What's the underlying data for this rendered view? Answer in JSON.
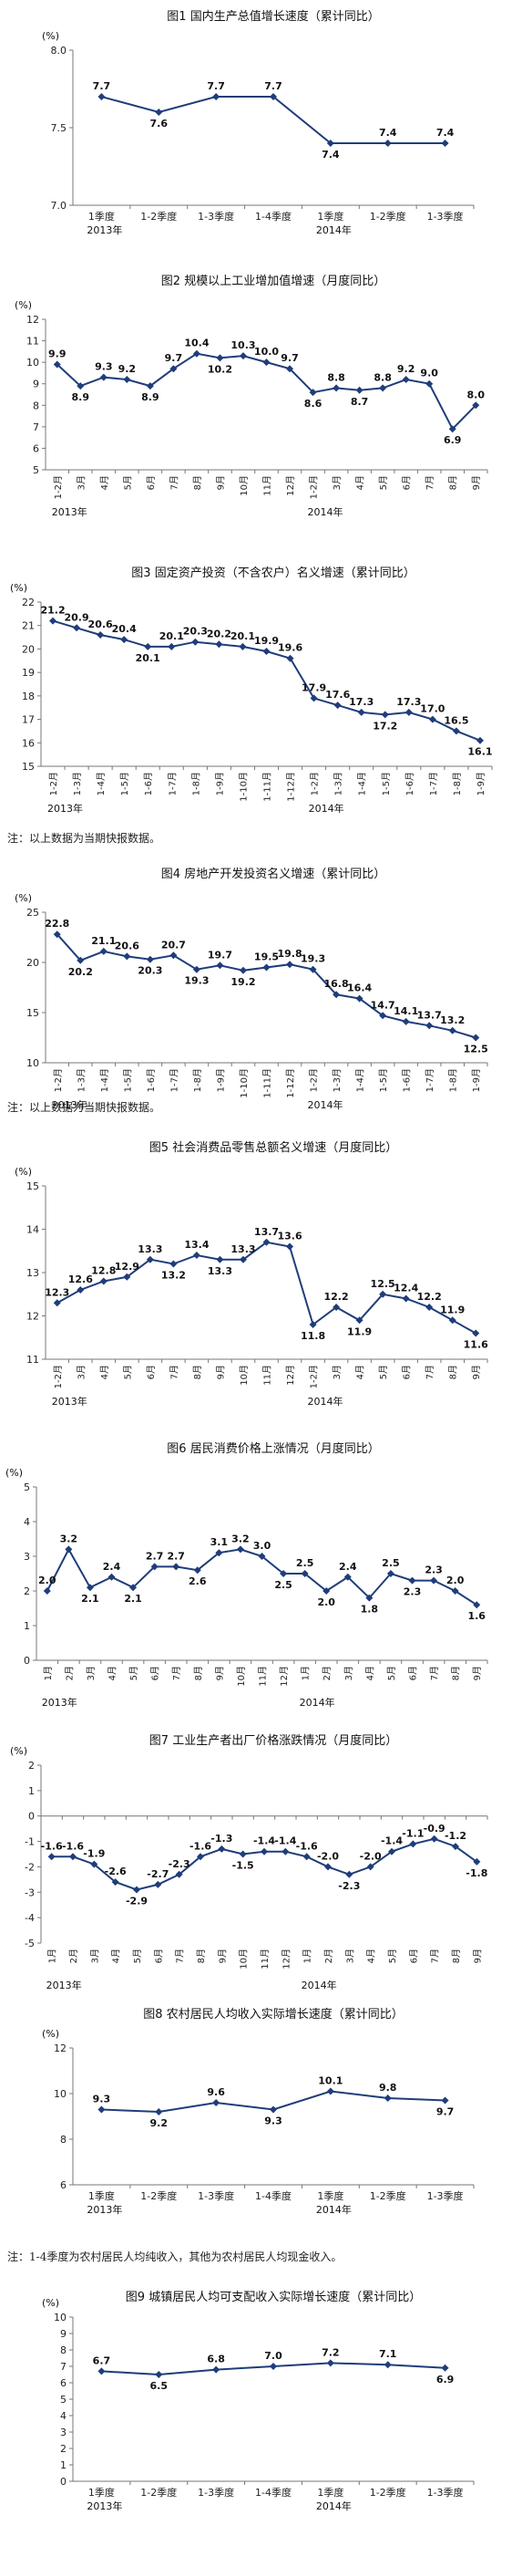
{
  "colors": {
    "line": "#1f3d7a",
    "axis": "#777777",
    "grid": "#bbbbbb"
  },
  "chart_data": [
    {
      "type": "line",
      "title": "图1  国内生产总值增长速度（累计同比）",
      "unit": "(%)",
      "categories": [
        "1季度",
        "1-2季度",
        "1-3季度",
        "1-4季度",
        "1季度",
        "1-2季度",
        "1-3季度"
      ],
      "years": [
        {
          "label": "2013年",
          "index": 0
        },
        {
          "label": "2014年",
          "index": 4
        }
      ],
      "values": [
        7.7,
        7.6,
        7.7,
        7.7,
        7.4,
        7.4,
        7.4
      ],
      "value_labels": [
        "7.7",
        "7.6",
        "7.7",
        "7.7",
        "7.4",
        "7.4",
        "7.4"
      ],
      "ylim": [
        7.0,
        8.0
      ],
      "yticks": [
        "7.0",
        "7.5",
        "8.0"
      ],
      "grid": false,
      "note": ""
    },
    {
      "type": "line",
      "title": "图2  规模以上工业增加值增速（月度同比）",
      "unit": "(%)",
      "categories": [
        "1-2月",
        "3月",
        "4月",
        "5月",
        "6月",
        "7月",
        "8月",
        "9月",
        "10月",
        "11月",
        "12月",
        "1-2月",
        "3月",
        "4月",
        "5月",
        "6月",
        "7月",
        "8月",
        "9月"
      ],
      "years": [
        {
          "label": "2013年",
          "index": 0
        },
        {
          "label": "2014年",
          "index": 11
        }
      ],
      "values": [
        9.9,
        8.9,
        9.3,
        9.2,
        8.9,
        9.7,
        10.4,
        10.2,
        10.3,
        10.0,
        9.7,
        8.6,
        8.8,
        8.7,
        8.8,
        9.2,
        9.0,
        6.9,
        8.0
      ],
      "value_labels": [
        "9.9",
        "8.9",
        "9.3",
        "9.2",
        "8.9",
        "9.7",
        "10.4",
        "10.2",
        "10.3",
        "10.0",
        "9.7",
        "8.6",
        "8.8",
        "8.7",
        "8.8",
        "9.2",
        "9.0",
        "6.9",
        "8.0"
      ],
      "ylim": [
        5,
        12
      ],
      "yticks": [
        "5",
        "6",
        "7",
        "8",
        "9",
        "10",
        "11",
        "12"
      ],
      "grid": false,
      "note": ""
    },
    {
      "type": "line",
      "title": "图3  固定资产投资（不含农户）名义增速（累计同比）",
      "unit": "(%)",
      "categories": [
        "1-2月",
        "1-3月",
        "1-4月",
        "1-5月",
        "1-6月",
        "1-7月",
        "1-8月",
        "1-9月",
        "1-10月",
        "1-11月",
        "1-12月",
        "1-2月",
        "1-3月",
        "1-4月",
        "1-5月",
        "1-6月",
        "1-7月",
        "1-8月",
        "1-9月"
      ],
      "years": [
        {
          "label": "2013年",
          "index": 0
        },
        {
          "label": "2014年",
          "index": 11
        }
      ],
      "values": [
        21.2,
        20.9,
        20.6,
        20.4,
        20.1,
        20.1,
        20.3,
        20.2,
        20.1,
        19.9,
        19.6,
        17.9,
        17.6,
        17.3,
        17.2,
        17.3,
        17.0,
        16.5,
        16.1
      ],
      "value_labels": [
        "21.2",
        "20.9",
        "20.6",
        "20.4",
        "20.1",
        "20.1",
        "20.3",
        "20.2",
        "20.1",
        "19.9",
        "19.6",
        "17.9",
        "17.6",
        "17.3",
        "17.2",
        "17.3",
        "17.0",
        "16.5",
        "16.1"
      ],
      "ylim": [
        15,
        22
      ],
      "yticks": [
        "15",
        "16",
        "17",
        "18",
        "19",
        "20",
        "21",
        "22"
      ],
      "grid": false,
      "note": "注：以上数据为当期快报数据。"
    },
    {
      "type": "line",
      "title": "图4  房地产开发投资名义增速（累计同比）",
      "unit": "(%)",
      "categories": [
        "1-2月",
        "1-3月",
        "1-4月",
        "1-5月",
        "1-6月",
        "1-7月",
        "1-8月",
        "1-9月",
        "1-10月",
        "1-11月",
        "1-12月",
        "1-2月",
        "1-3月",
        "1-4月",
        "1-5月",
        "1-6月",
        "1-7月",
        "1-8月",
        "1-9月"
      ],
      "years": [
        {
          "label": "2013年",
          "index": 0
        },
        {
          "label": "2014年",
          "index": 11
        }
      ],
      "values": [
        22.8,
        20.2,
        21.1,
        20.6,
        20.3,
        20.7,
        19.3,
        19.7,
        19.2,
        19.5,
        19.8,
        19.3,
        16.8,
        16.4,
        14.7,
        14.1,
        13.7,
        13.2,
        12.5
      ],
      "value_labels": [
        "22.8",
        "20.2",
        "21.1",
        "20.6",
        "20.3",
        "20.7",
        "19.3",
        "19.7",
        "19.2",
        "19.5",
        "19.8",
        "19.3",
        "16.8",
        "16.4",
        "14.7",
        "14.1",
        "13.7",
        "13.2",
        "12.5"
      ],
      "ylim": [
        10,
        25
      ],
      "yticks": [
        "10",
        "15",
        "20",
        "25"
      ],
      "grid": false,
      "note": "注：以上数据为当期快报数据。"
    },
    {
      "type": "line",
      "title": "图5  社会消费品零售总额名义增速（月度同比）",
      "unit": "(%)",
      "categories": [
        "1-2月",
        "3月",
        "4月",
        "5月",
        "6月",
        "7月",
        "8月",
        "9月",
        "10月",
        "11月",
        "12月",
        "1-2月",
        "3月",
        "4月",
        "5月",
        "6月",
        "7月",
        "8月",
        "9月"
      ],
      "years": [
        {
          "label": "2013年",
          "index": 0
        },
        {
          "label": "2014年",
          "index": 11
        }
      ],
      "values": [
        12.3,
        12.6,
        12.8,
        12.9,
        13.3,
        13.2,
        13.4,
        13.3,
        13.3,
        13.7,
        13.6,
        11.8,
        12.2,
        11.9,
        12.5,
        12.4,
        12.2,
        11.9,
        11.6
      ],
      "value_labels": [
        "12.3",
        "12.6",
        "12.8",
        "12.9",
        "13.3",
        "13.2",
        "13.4",
        "13.3",
        "13.3",
        "13.7",
        "13.6",
        "11.8",
        "12.2",
        "11.9",
        "12.5",
        "12.4",
        "12.2",
        "11.9",
        "11.6"
      ],
      "ylim": [
        11,
        15
      ],
      "yticks": [
        "11",
        "12",
        "13",
        "14",
        "15"
      ],
      "grid": false,
      "note": ""
    },
    {
      "type": "line",
      "title": "图6  居民消费价格上涨情况（月度同比）",
      "unit": "(%)",
      "categories": [
        "1月",
        "2月",
        "3月",
        "4月",
        "5月",
        "6月",
        "7月",
        "8月",
        "9月",
        "10月",
        "11月",
        "12月",
        "1月",
        "2月",
        "3月",
        "4月",
        "5月",
        "6月",
        "7月",
        "8月",
        "9月"
      ],
      "years": [
        {
          "label": "2013年",
          "index": 0
        },
        {
          "label": "2014年",
          "index": 12
        }
      ],
      "values": [
        2.0,
        3.2,
        2.1,
        2.4,
        2.1,
        2.7,
        2.7,
        2.6,
        3.1,
        3.2,
        3.0,
        2.5,
        2.5,
        2.0,
        2.4,
        1.8,
        2.5,
        2.3,
        2.3,
        2.0,
        1.6
      ],
      "value_labels": [
        "2.0",
        "3.2",
        "2.1",
        "2.4",
        "2.1",
        "2.7",
        "2.7",
        "2.6",
        "3.1",
        "3.2",
        "3.0",
        "2.5",
        "2.5",
        "2.0",
        "2.4",
        "1.8",
        "2.5",
        "2.3",
        "2.3",
        "2.0",
        "1.6"
      ],
      "ylim": [
        0,
        5
      ],
      "yticks": [
        "0",
        "1",
        "2",
        "3",
        "4",
        "5"
      ],
      "grid": false,
      "note": ""
    },
    {
      "type": "line",
      "title": "图7  工业生产者出厂价格涨跌情况（月度同比）",
      "unit": "(%)",
      "categories": [
        "1月",
        "2月",
        "3月",
        "4月",
        "5月",
        "6月",
        "7月",
        "8月",
        "9月",
        "10月",
        "11月",
        "12月",
        "1月",
        "2月",
        "3月",
        "4月",
        "5月",
        "6月",
        "7月",
        "8月",
        "9月"
      ],
      "years": [
        {
          "label": "2013年",
          "index": 0
        },
        {
          "label": "2014年",
          "index": 12
        }
      ],
      "values": [
        -1.6,
        -1.6,
        -1.9,
        -2.6,
        -2.9,
        -2.7,
        -2.3,
        -1.6,
        -1.3,
        -1.5,
        -1.4,
        -1.4,
        -1.6,
        -2.0,
        -2.3,
        -2.0,
        -1.4,
        -1.1,
        -0.9,
        -1.2,
        -1.8
      ],
      "value_labels": [
        "-1.6",
        "-1.6",
        "-1.9",
        "-2.6",
        "-2.9",
        "-2.7",
        "-2.3",
        "-1.6",
        "-1.3",
        "-1.5",
        "-1.4",
        "-1.4",
        "-1.6",
        "-2.0",
        "-2.3",
        "-2.0",
        "-1.4",
        "-1.1",
        "-0.9",
        "-1.2",
        "-1.8"
      ],
      "ylim": [
        -5,
        2
      ],
      "yticks": [
        "-5",
        "-4",
        "-3",
        "-2",
        "-1",
        "0",
        "1",
        "2"
      ],
      "grid": false,
      "note": ""
    },
    {
      "type": "line",
      "title": "图8  农村居民人均收入实际增长速度（累计同比）",
      "unit": "(%)",
      "categories": [
        "1季度",
        "1-2季度",
        "1-3季度",
        "1-4季度",
        "1季度",
        "1-2季度",
        "1-3季度"
      ],
      "years": [
        {
          "label": "2013年",
          "index": 0
        },
        {
          "label": "2014年",
          "index": 4
        }
      ],
      "values": [
        9.3,
        9.2,
        9.6,
        9.3,
        10.1,
        9.8,
        9.7
      ],
      "value_labels": [
        "9.3",
        "9.2",
        "9.6",
        "9.3",
        "10.1",
        "9.8",
        "9.7"
      ],
      "ylim": [
        6,
        12
      ],
      "yticks": [
        "6",
        "8",
        "10",
        "12"
      ],
      "grid": false,
      "note": "注：1-4季度为农村居民人均纯收入，其他为农村居民人均现金收入。"
    },
    {
      "type": "line",
      "title": "图9  城镇居民人均可支配收入实际增长速度（累计同比）",
      "unit": "(%)",
      "categories": [
        "1季度",
        "1-2季度",
        "1-3季度",
        "1-4季度",
        "1季度",
        "1-2季度",
        "1-3季度"
      ],
      "years": [
        {
          "label": "2013年",
          "index": 0
        },
        {
          "label": "2014年",
          "index": 4
        }
      ],
      "values": [
        6.7,
        6.5,
        6.8,
        7.0,
        7.2,
        7.1,
        6.9
      ],
      "value_labels": [
        "6.7",
        "6.5",
        "6.8",
        "7.0",
        "7.2",
        "7.1",
        "6.9"
      ],
      "ylim": [
        0,
        10
      ],
      "yticks": [
        "0",
        "1",
        "2",
        "3",
        "4",
        "5",
        "6",
        "7",
        "8",
        "9",
        "10"
      ],
      "grid": false,
      "note": ""
    }
  ]
}
